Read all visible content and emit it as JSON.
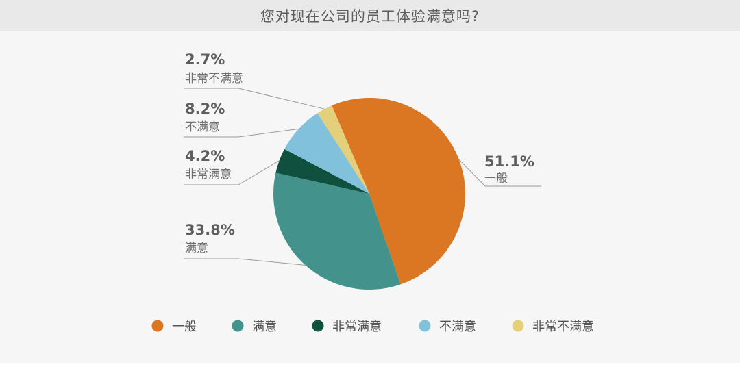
{
  "header": {
    "title": "您对现在公司的员工体验满意吗?"
  },
  "chart_data": {
    "type": "pie",
    "title": "您对现在公司的员工体验满意吗?",
    "unit": "%",
    "slices": [
      {
        "label": "一般",
        "value": 51.1,
        "display": "51.1%",
        "color": "#db7623"
      },
      {
        "label": "满意",
        "value": 33.8,
        "display": "33.8%",
        "color": "#43938c"
      },
      {
        "label": "非常满意",
        "value": 4.2,
        "display": "4.2%",
        "color": "#10503f"
      },
      {
        "label": "不满意",
        "value": 8.2,
        "display": "8.2%",
        "color": "#82c1dc"
      },
      {
        "label": "非常不满意",
        "value": 2.7,
        "display": "2.7%",
        "color": "#e4d07a"
      }
    ],
    "legend": {
      "position": "bottom",
      "items": [
        "一般",
        "满意",
        "非常满意",
        "不满意",
        "非常不满意"
      ]
    }
  }
}
